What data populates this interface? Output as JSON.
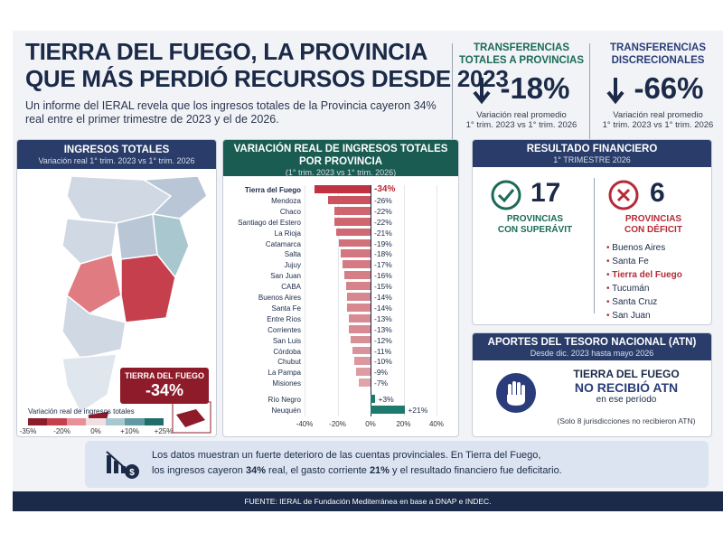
{
  "title_line1": "TIERRA DEL FUEGO, LA PROVINCIA",
  "title_line2": "QUE MÁS PERDIÓ RECURSOS DESDE 2023",
  "intro": "Un informe del IERAL revela que los ingresos totales de la Provincia cayeron 34% real entre el primer trimestre de 2023 y el de 2026.",
  "stats": [
    {
      "heading_1": "TRANSFERENCIAS",
      "heading_2": "TOTALES A PROVINCIAS",
      "value": "-18%",
      "note_1": "Variación real promedio",
      "note_2": "1° trim. 2023 vs 1° trim. 2026",
      "color": "#1a6b57"
    },
    {
      "heading_1": "TRANSFERENCIAS",
      "heading_2": "DISCRECIONALES",
      "value": "-66%",
      "note_1": "Variación real promedio",
      "note_2": "1° trim. 2023 vs 1° trim. 2026",
      "color": "#2a3d7a"
    }
  ],
  "map_panel": {
    "title": "INGRESOS TOTALES",
    "subtitle": "Variación real 1° trim. 2023 vs 1° trim. 2026",
    "callout_name": "TIERRA DEL FUEGO",
    "callout_value": "-34%",
    "legend_title": "Variación real de ingresos totales",
    "legend_ticks": [
      "-35%",
      "-20%",
      "0%",
      "+10%",
      "+25%"
    ],
    "legend_colors": [
      "#8e1b2a",
      "#c5404c",
      "#e8909a",
      "#f0e0e2",
      "#a9c7cf",
      "#5f9aa5",
      "#1f6e6a"
    ],
    "province_color": "#cfd8e3",
    "highlight_color": "#e07b82"
  },
  "chart_panel": {
    "title_1": "VARIACIÓN REAL DE INGRESOS TOTALES",
    "title_2": "POR PROVINCIA",
    "subtitle": "(1° trim. 2023 vs 1° trim. 2026)"
  },
  "chart_data": {
    "type": "bar",
    "orientation": "horizontal",
    "categories": [
      "Tierra del Fuego",
      "Mendoza",
      "Chaco",
      "Santiago del Estero",
      "La Rioja",
      "Catamarca",
      "Salta",
      "Jujuy",
      "San Juan",
      "CABA",
      "Buenos Aires",
      "Santa Fe",
      "Entre Ríos",
      "Corrientes",
      "San Luis",
      "Córdoba",
      "Chubut",
      "La Pampa",
      "Misiones",
      "Río Negro",
      "Neuquén"
    ],
    "values": [
      -34,
      -26,
      -22,
      -22,
      -21,
      -19,
      -18,
      -17,
      -16,
      -15,
      -14,
      -14,
      -13,
      -13,
      -12,
      -11,
      -10,
      -9,
      -7,
      3,
      21
    ],
    "labels": [
      "-34%",
      "-26%",
      "-22%",
      "-22%",
      "-21%",
      "-19%",
      "-18%",
      "-17%",
      "-16%",
      "-15%",
      "-14%",
      "-14%",
      "-13%",
      "-13%",
      "-12%",
      "-11%",
      "-10%",
      "-9%",
      "-7%",
      "+3%",
      "+21%"
    ],
    "xlim": [
      -40,
      40
    ],
    "xticks": [
      "-40%",
      "-20%",
      "0%",
      "20%",
      "40%"
    ],
    "negative_color_strong": "#c0323f",
    "negative_color_light": "#e7c2c6",
    "positive_color": "#1f7a6e"
  },
  "result_panel": {
    "title": "RESULTADO FINANCIERO",
    "subtitle": "1° TRIMESTRE 2026",
    "surplus_count": "17",
    "surplus_label_1": "PROVINCIAS",
    "surplus_label_2": "CON SUPERÁVIT",
    "deficit_count": "6",
    "deficit_label_1": "PROVINCIAS",
    "deficit_label_2": "CON DÉFICIT",
    "deficit_list": [
      "Buenos Aires",
      "Santa Fe",
      "Tierra del Fuego",
      "Tucumán",
      "Santa Cruz",
      "San Juan"
    ],
    "surplus_color": "#1a6b57",
    "deficit_color": "#b52a36"
  },
  "atn_panel": {
    "title": "APORTES DEL TESORO NACIONAL (ATN)",
    "subtitle": "Desde dic. 2023 hasta mayo 2026",
    "line1": "TIERRA DEL FUEGO",
    "line2": "NO RECIBIÓ ATN",
    "line3": "en ese período",
    "note": "(Solo 8 jurisdicciones no recibieron ATN)",
    "color": "#2a3d7a"
  },
  "conclusion": {
    "line1": "Los datos muestran un fuerte deterioro de las cuentas provinciales. En Tierra del Fuego,",
    "line2_a": "los ingresos cayeron ",
    "line2_b": "34%",
    "line2_c": " real, el gasto corriente ",
    "line2_d": "21%",
    "line2_e": " y el resultado financiero fue  deficitario."
  },
  "source": "FUENTE: IERAL de Fundación Mediterránea en base a DNAP e INDEC."
}
